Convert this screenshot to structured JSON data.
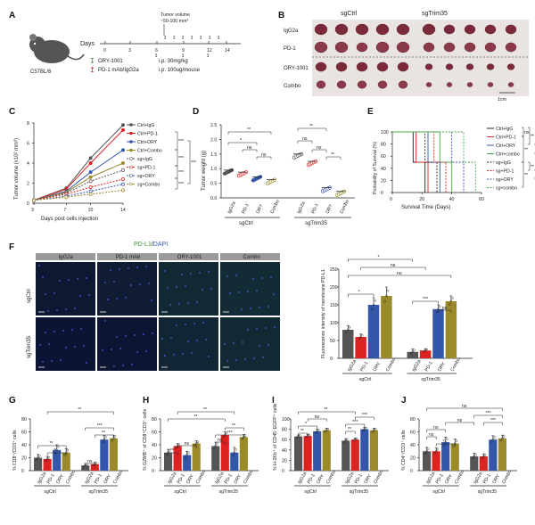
{
  "panels": {
    "A": {
      "label": "A",
      "mouse": "C57BL/6",
      "days_label": "Days",
      "days": [
        "0",
        "3",
        "6",
        "9",
        "12",
        "14"
      ],
      "tumor_note_line1": "Tumor volume",
      "tumor_note_line2": "~50-100 mm³",
      "legend": [
        {
          "text": "ORY-1001",
          "dose": "i.p. 30mg/kg",
          "color": "#3a8a3a"
        },
        {
          "text": "PD-1 mAb/IgG2a",
          "dose": "i.p. 100ug/mouse",
          "color": "#cc2222"
        }
      ]
    },
    "B": {
      "label": "B",
      "col_headers": [
        "sgCtrl",
        "sgTrim35"
      ],
      "row_labels": [
        "IgG2a",
        "PD-1",
        "ORY-1001",
        "Combo"
      ],
      "scale": "1cm"
    },
    "C": {
      "label": "C",
      "sig": [
        "***",
        "***",
        "***",
        "***",
        "***"
      ]
    },
    "D": {
      "label": "D",
      "sig": [
        "**",
        "*",
        "ns",
        "ns",
        "ns",
        "**",
        "ns",
        "**"
      ]
    },
    "E": {
      "label": "E",
      "sig": [
        "ns",
        "**",
        "ns",
        "**",
        "**",
        "ns",
        "**"
      ]
    },
    "F": {
      "label": "F",
      "stain_label": "PD-L1",
      "stain_sep": "/",
      "stain_dapi": "DAPI",
      "col_headers": [
        "IgG2a",
        "PD-1 mAb",
        "ORY-1001",
        "Combo"
      ],
      "row_labels": [
        "sgCtrl",
        "sgTrim35"
      ],
      "sig": [
        "*",
        "ns",
        "ns",
        "*",
        "***",
        "ns"
      ]
    },
    "G": {
      "label": "G",
      "sig": [
        "**",
        "**",
        "*",
        "ns",
        "***",
        "**"
      ]
    },
    "H": {
      "label": "H",
      "sig": [
        "**",
        "ns",
        "**",
        "ns",
        "***",
        "**",
        "**"
      ]
    },
    "I": {
      "label": "I",
      "sig": [
        "**",
        "*",
        "**",
        "ns",
        "**",
        "***",
        "***"
      ]
    },
    "J": {
      "label": "J",
      "sig": [
        "ns",
        "ns",
        "*",
        "ns",
        "ns",
        "***",
        "***"
      ]
    }
  },
  "colors": {
    "igg": "#555555",
    "pd1": "#dd2222",
    "ory": "#3355aa",
    "combo": "#9a8a2a",
    "surv_green": "#4aaa4a"
  },
  "chart_data": [
    {
      "panel": "C",
      "type": "line",
      "xlabel": "Days post cells injection",
      "ylabel": "Tumor volume (x10² mm³)",
      "x": [
        3,
        7,
        10,
        14
      ],
      "ylim": [
        0,
        8
      ],
      "yticks": [
        0,
        2,
        4,
        6,
        8
      ],
      "series": [
        {
          "name": "Ctrl+IgG",
          "values": [
            0.3,
            1.5,
            4.5,
            7.8
          ],
          "color": "#555555",
          "dash": false
        },
        {
          "name": "Ctrl+PD-1",
          "values": [
            0.3,
            1.4,
            4.0,
            7.3
          ],
          "color": "#dd2222",
          "dash": false
        },
        {
          "name": "Ctrl+ORY",
          "values": [
            0.3,
            1.2,
            3.1,
            5.3
          ],
          "color": "#3355aa",
          "dash": false
        },
        {
          "name": "Ctrl+Combo",
          "values": [
            0.3,
            1.1,
            2.6,
            4.0
          ],
          "color": "#9a8a2a",
          "dash": false
        },
        {
          "name": "sg+IgG",
          "values": [
            0.3,
            1.0,
            2.2,
            3.3
          ],
          "color": "#555555",
          "dash": true
        },
        {
          "name": "sg+PD-1",
          "values": [
            0.3,
            0.9,
            1.6,
            2.4
          ],
          "color": "#dd2222",
          "dash": true
        },
        {
          "name": "sg+ORY",
          "values": [
            0.3,
            0.7,
            1.2,
            1.9
          ],
          "color": "#3355aa",
          "dash": true
        },
        {
          "name": "sg+Combo",
          "values": [
            0.3,
            0.6,
            0.9,
            1.3
          ],
          "color": "#9a8a2a",
          "dash": true
        }
      ]
    },
    {
      "panel": "D",
      "type": "scatter",
      "ylabel": "Tumor weight (g)",
      "ylim": [
        0,
        2.5
      ],
      "yticks": [
        0,
        0.5,
        1.0,
        1.5,
        2.0,
        2.5
      ],
      "groups": [
        "sgCtrl",
        "sgTrim35"
      ],
      "categories": [
        "IgG2a",
        "PD-1",
        "ORY",
        "Combo",
        "IgG2a",
        "PD-1",
        "ORY",
        "Combo"
      ],
      "values": [
        0.95,
        0.88,
        0.72,
        0.62,
        1.5,
        1.25,
        0.35,
        0.22
      ]
    },
    {
      "panel": "E",
      "type": "line",
      "xlabel": "Survival Time (Days)",
      "ylabel": "Probability of Survival (%)",
      "xlim": [
        0,
        60
      ],
      "ylim": [
        0,
        100
      ],
      "xticks": [
        0,
        20,
        40,
        60
      ],
      "yticks": [
        0,
        10,
        20,
        30,
        40,
        50,
        60,
        70,
        80,
        90,
        100
      ],
      "series": [
        {
          "name": "Ctrl+IgG",
          "end": 22,
          "color": "#222222"
        },
        {
          "name": "Ctrl+PD-1",
          "end": 24,
          "color": "#dd2222"
        },
        {
          "name": "Ctrl+ORY",
          "end": 32,
          "color": "#3355aa"
        },
        {
          "name": "Ctrl+combo",
          "end": 40,
          "color": "#4aaa4a"
        },
        {
          "name": "sg+IgG",
          "end": 30,
          "color": "#222222"
        },
        {
          "name": "sg+PD-1",
          "end": 36,
          "color": "#dd2222"
        },
        {
          "name": "sg+ORY",
          "end": 48,
          "color": "#3355aa"
        },
        {
          "name": "sg+combo",
          "end": 56,
          "color": "#4aaa4a"
        }
      ]
    },
    {
      "panel": "F",
      "type": "bar",
      "ylabel": "Fluorescence intensity of membrane PD-L1",
      "ylim": [
        0,
        250
      ],
      "yticks": [
        0,
        50,
        100,
        150,
        200,
        250
      ],
      "groups": [
        "sgCtrl",
        "sgTrim35"
      ],
      "categories": [
        "IgG2a",
        "PD-1",
        "ORY",
        "Combo",
        "IgG2a",
        "PD-1",
        "ORY",
        "Combo"
      ],
      "values": [
        80,
        60,
        150,
        175,
        18,
        22,
        138,
        160
      ],
      "errors": [
        12,
        8,
        20,
        25,
        8,
        5,
        12,
        15
      ]
    },
    {
      "panel": "G",
      "type": "bar",
      "ylabel": "% CD8⁺/CD3⁺ cells",
      "ylim": [
        0,
        80
      ],
      "yticks": [
        0,
        20,
        40,
        60,
        80
      ],
      "groups": [
        "sgCtrl",
        "sgTrim35"
      ],
      "categories": [
        "IgG2a",
        "PD-1",
        "ORY",
        "Combo",
        "IgG2a",
        "PD-1",
        "ORY",
        "Combo"
      ],
      "values": [
        20,
        18,
        32,
        28,
        8,
        10,
        48,
        50
      ],
      "errors": [
        5,
        4,
        8,
        6,
        3,
        3,
        6,
        5
      ]
    },
    {
      "panel": "H",
      "type": "bar",
      "ylabel": "% GZMB⁺ of CD8⁺CD3⁺ cells",
      "ylim": [
        0,
        80
      ],
      "yticks": [
        0,
        20,
        40,
        60,
        80
      ],
      "groups": [
        "sgCtrl",
        "sgTrim35"
      ],
      "categories": [
        "IgG2a",
        "PD-1",
        "ORY",
        "Combo",
        "IgG2a",
        "PD-1",
        "ORY",
        "Combo"
      ],
      "values": [
        28,
        38,
        24,
        42,
        38,
        55,
        28,
        52
      ],
      "errors": [
        5,
        4,
        6,
        4,
        6,
        5,
        8,
        4
      ]
    },
    {
      "panel": "I",
      "type": "bar",
      "ylabel": "% H-2Kb⁺ of CD45⁻EGFP⁺ cells",
      "ylim": [
        0,
        100
      ],
      "yticks": [
        0,
        20,
        40,
        60,
        80,
        100
      ],
      "groups": [
        "sgCtrl",
        "sgTrim35"
      ],
      "categories": [
        "IgG2a",
        "PD-1",
        "ORY",
        "Combo",
        "IgG2a",
        "PD-1",
        "ORY",
        "Combo"
      ],
      "values": [
        66,
        67,
        76,
        78,
        58,
        60,
        80,
        78
      ],
      "errors": [
        3,
        3,
        4,
        4,
        4,
        3,
        4,
        4
      ]
    },
    {
      "panel": "J",
      "type": "bar",
      "ylabel": "% CD4⁺/CD3⁺ cells",
      "ylim": [
        0,
        80
      ],
      "yticks": [
        0,
        20,
        40,
        60,
        80
      ],
      "groups": [
        "sgCtrl",
        "sgTrim35"
      ],
      "categories": [
        "IgG2a",
        "PD-1",
        "ORY",
        "Combo",
        "IgG2a",
        "PD-1",
        "ORY",
        "Combo"
      ],
      "values": [
        30,
        30,
        44,
        42,
        22,
        22,
        48,
        50
      ],
      "errors": [
        6,
        5,
        8,
        7,
        5,
        4,
        6,
        5
      ]
    }
  ]
}
